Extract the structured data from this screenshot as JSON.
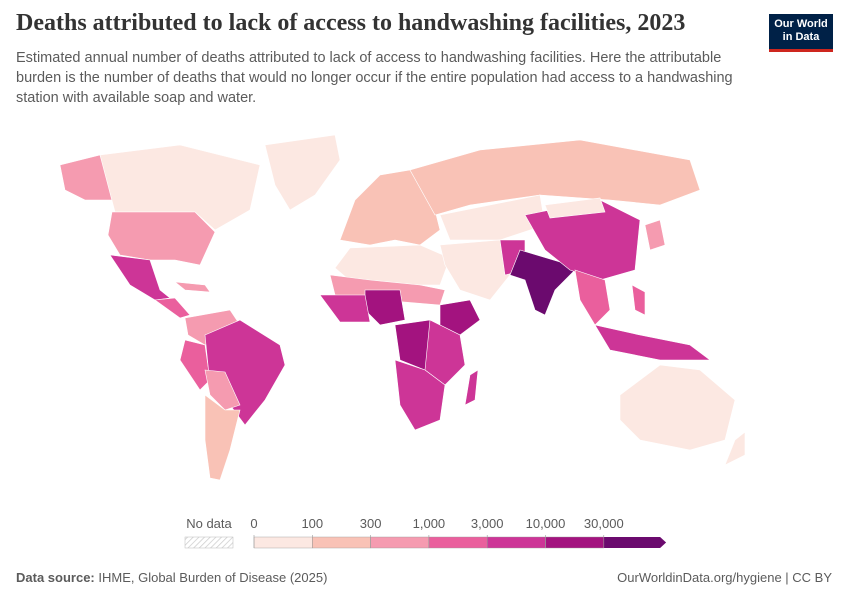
{
  "header": {
    "title": "Deaths attributed to lack of access to handwashing facilities, 2023",
    "subtitle": "Estimated annual number of deaths attributed to lack of access to handwashing facilities. Here the attributable burden is the number of deaths that would no longer occur if the entire population had access to a handwashing station with available soap and water.",
    "logo": [
      "Our World",
      "in Data"
    ]
  },
  "legend": {
    "no_data": "No data",
    "ticks": [
      "0",
      "100",
      "300",
      "1,000",
      "3,000",
      "10,000",
      "30,000"
    ],
    "colors": [
      "#fce8e2",
      "#f9c2b6",
      "#f59bb0",
      "#ea5f9d",
      "#cd3597",
      "#a3137f",
      "#6b0a6e"
    ]
  },
  "footer": {
    "source_label": "Data source:",
    "source": "IHME, Global Burden of Disease (2025)",
    "url": "OurWorldinData.org/hygiene | CC BY"
  }
}
